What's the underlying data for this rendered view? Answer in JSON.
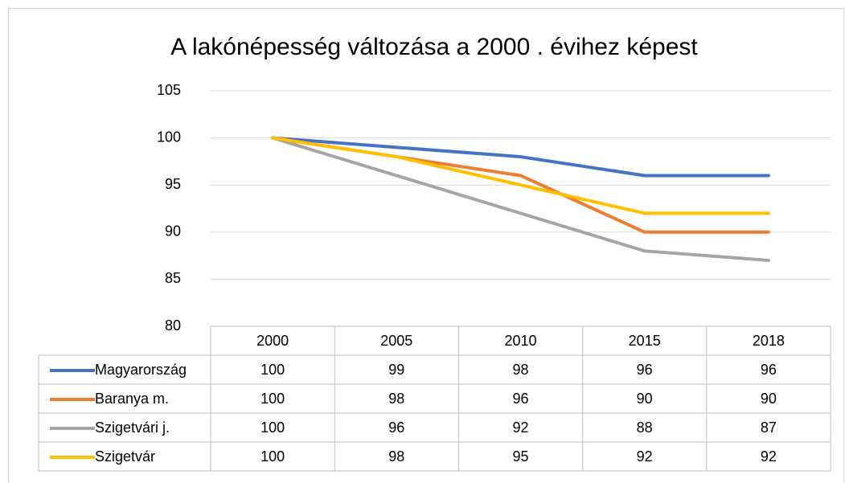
{
  "chart_data": {
    "type": "line",
    "title": "A lakónépesség változása a 2000 . évihez képest",
    "categories": [
      "2000",
      "2005",
      "2010",
      "2015",
      "2018"
    ],
    "series": [
      {
        "name": "Magyarország",
        "color": "#4472c4",
        "values": [
          100,
          99,
          98,
          96,
          96
        ]
      },
      {
        "name": "Baranya m.",
        "color": "#ed7d31",
        "values": [
          100,
          98,
          96,
          90,
          90
        ]
      },
      {
        "name": "Szigetvári j.",
        "color": "#a5a5a5",
        "values": [
          100,
          96,
          92,
          88,
          87
        ]
      },
      {
        "name": "Szigetvár",
        "color": "#ffc000",
        "values": [
          100,
          98,
          95,
          92,
          92
        ]
      }
    ],
    "ylim": [
      80,
      105
    ],
    "yticks": [
      80,
      85,
      90,
      95,
      100,
      105
    ],
    "grid": true
  }
}
